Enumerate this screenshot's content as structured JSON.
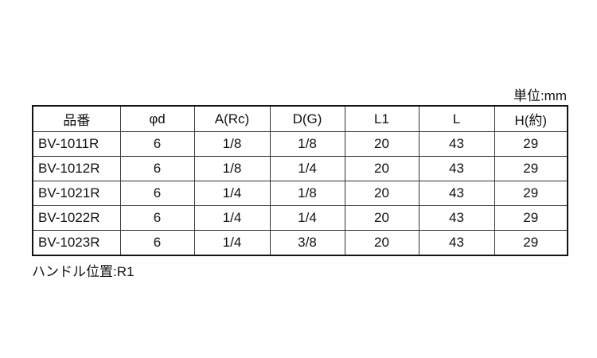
{
  "unit_label": "単位:mm",
  "table": {
    "headers": [
      "品番",
      "φd",
      "A(Rc)",
      "D(G)",
      "L1",
      "L",
      "H(約)"
    ],
    "rows": [
      [
        "BV-1011R",
        "6",
        "1/8",
        "1/8",
        "20",
        "43",
        "29"
      ],
      [
        "BV-1012R",
        "6",
        "1/8",
        "1/4",
        "20",
        "43",
        "29"
      ],
      [
        "BV-1021R",
        "6",
        "1/4",
        "1/8",
        "20",
        "43",
        "29"
      ],
      [
        "BV-1022R",
        "6",
        "1/4",
        "1/4",
        "20",
        "43",
        "29"
      ],
      [
        "BV-1023R",
        "6",
        "1/4",
        "3/8",
        "20",
        "43",
        "29"
      ]
    ]
  },
  "note": "ハンドル位置:R1"
}
